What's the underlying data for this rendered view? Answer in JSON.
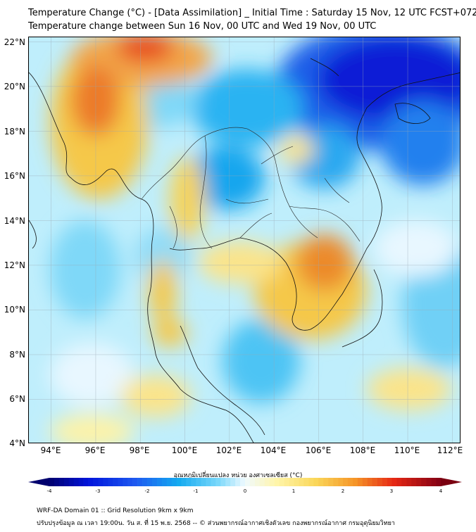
{
  "header": {
    "title_line1": "Temperature Change (°C) - [Data Assimilation] _ Initial Time : Saturday 15 Nov, 12 UTC FCST+072",
    "title_line2": "Temperature change between Sun 16 Nov, 00 UTC and Wed 19 Nov, 00 UTC"
  },
  "map": {
    "region": "Mainland Southeast Asia",
    "latitude_labels": [
      "22°N",
      "20°N",
      "18°N",
      "16°N",
      "14°N",
      "12°N",
      "10°N",
      "8°N",
      "6°N",
      "4°N"
    ],
    "longitude_labels": [
      "94°E",
      "96°E",
      "98°E",
      "100°E",
      "102°E",
      "104°E",
      "106°E",
      "108°E",
      "110°E",
      "112°E"
    ],
    "lat_range": [
      4,
      22.2
    ],
    "lon_range": [
      93,
      112.4
    ],
    "gridlines": true,
    "field_colors": {
      "strong_cooling": "#0a1fd6",
      "cooling": "#18a6ee",
      "light_cooling": "#9fe3fa",
      "neutral": "#e8f7ff",
      "light_warming": "#fdf3a8",
      "warming": "#f5c84a",
      "strong_warming": "#ec7a2a",
      "hot": "#e84a1a"
    }
  },
  "colorbar": {
    "title": "อุณหภูมิเปลี่ยนแปลง หน่วย องศาเซลเซียส (°C)",
    "ticks": [
      "-4",
      "-3",
      "-2",
      "-1",
      "0",
      "1",
      "2",
      "3",
      "4"
    ],
    "range": [
      -4,
      4
    ]
  },
  "footer": {
    "line1": "WRF-DA Domain 01 :: Grid Resolution 9km x 9km",
    "line2": "ปรับปรุงข้อมูล ณ เวลา 19:00น. วัน ส. ที่ 15 พ.ย. 2568 -- © ส่วนพยากรณ์อากาศเชิงตัวเลข กองพยากรณ์อากาศ กรมอุตุนิยมวิทยา"
  }
}
